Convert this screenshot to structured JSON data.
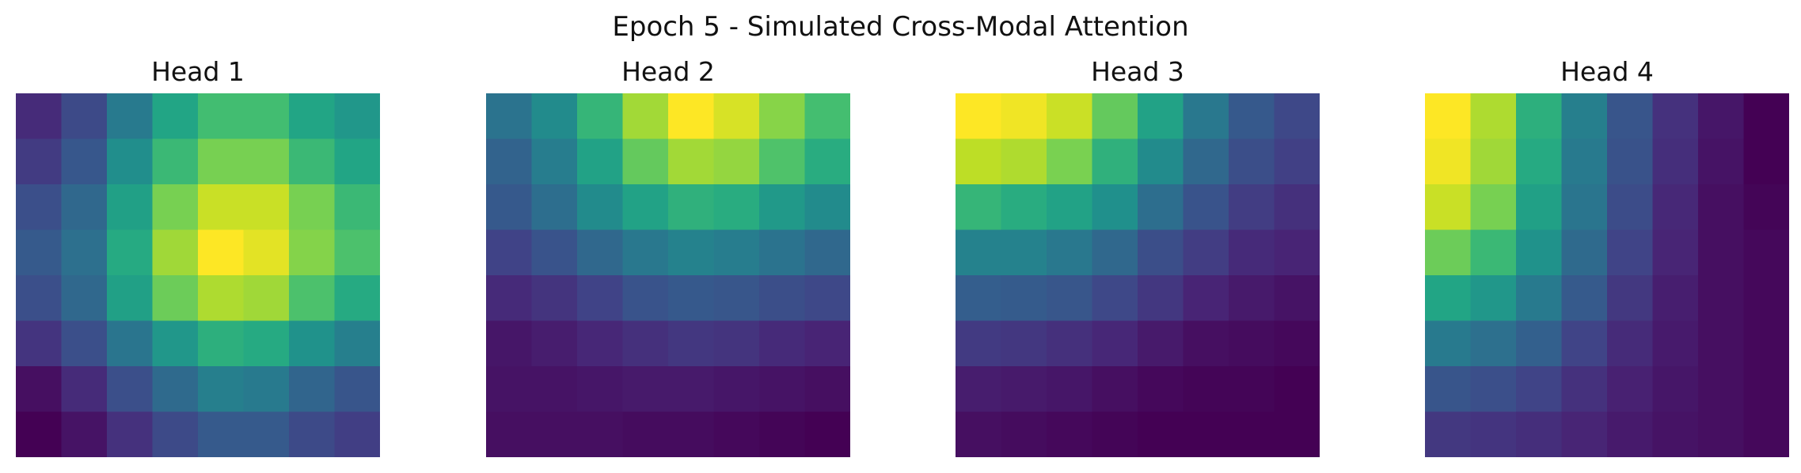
{
  "figure": {
    "title": "Epoch 5 - Simulated Cross-Modal Attention"
  },
  "colormap": "viridis",
  "chart_data": [
    {
      "type": "heatmap",
      "title": "Head 1",
      "rows": 8,
      "cols": 8,
      "axis": "off",
      "values": [
        [
          0.12,
          0.22,
          0.4,
          0.58,
          0.68,
          0.68,
          0.58,
          0.52
        ],
        [
          0.17,
          0.27,
          0.48,
          0.66,
          0.78,
          0.78,
          0.66,
          0.58
        ],
        [
          0.24,
          0.33,
          0.56,
          0.78,
          0.9,
          0.9,
          0.78,
          0.66
        ],
        [
          0.28,
          0.36,
          0.6,
          0.84,
          0.98,
          0.94,
          0.8,
          0.7
        ],
        [
          0.24,
          0.33,
          0.56,
          0.76,
          0.86,
          0.84,
          0.7,
          0.6
        ],
        [
          0.15,
          0.24,
          0.38,
          0.52,
          0.62,
          0.6,
          0.5,
          0.42
        ],
        [
          0.04,
          0.12,
          0.24,
          0.34,
          0.42,
          0.4,
          0.32,
          0.26
        ],
        [
          0.0,
          0.05,
          0.14,
          0.22,
          0.28,
          0.28,
          0.22,
          0.18
        ]
      ]
    },
    {
      "type": "heatmap",
      "title": "Head 2",
      "rows": 8,
      "cols": 8,
      "axis": "off",
      "values": [
        [
          0.38,
          0.48,
          0.66,
          0.86,
          1.0,
          0.94,
          0.82,
          0.7
        ],
        [
          0.32,
          0.42,
          0.58,
          0.76,
          0.86,
          0.84,
          0.72,
          0.62
        ],
        [
          0.28,
          0.36,
          0.48,
          0.58,
          0.64,
          0.62,
          0.54,
          0.48
        ],
        [
          0.2,
          0.26,
          0.34,
          0.4,
          0.44,
          0.42,
          0.38,
          0.34
        ],
        [
          0.12,
          0.15,
          0.2,
          0.26,
          0.28,
          0.27,
          0.24,
          0.22
        ],
        [
          0.06,
          0.08,
          0.11,
          0.14,
          0.16,
          0.15,
          0.12,
          0.1
        ],
        [
          0.05,
          0.05,
          0.06,
          0.07,
          0.07,
          0.06,
          0.05,
          0.04
        ],
        [
          0.04,
          0.04,
          0.04,
          0.03,
          0.03,
          0.02,
          0.01,
          0.0
        ]
      ]
    },
    {
      "type": "heatmap",
      "title": "Head 3",
      "rows": 8,
      "cols": 8,
      "axis": "off",
      "values": [
        [
          1.0,
          0.98,
          0.92,
          0.76,
          0.58,
          0.4,
          0.28,
          0.22
        ],
        [
          0.9,
          0.88,
          0.8,
          0.64,
          0.48,
          0.34,
          0.24,
          0.19
        ],
        [
          0.66,
          0.62,
          0.58,
          0.5,
          0.36,
          0.26,
          0.18,
          0.14
        ],
        [
          0.44,
          0.44,
          0.4,
          0.34,
          0.24,
          0.18,
          0.12,
          0.1
        ],
        [
          0.3,
          0.29,
          0.27,
          0.22,
          0.16,
          0.1,
          0.07,
          0.05
        ],
        [
          0.17,
          0.16,
          0.14,
          0.11,
          0.07,
          0.04,
          0.03,
          0.02
        ],
        [
          0.08,
          0.07,
          0.06,
          0.04,
          0.02,
          0.01,
          0.01,
          0.0
        ],
        [
          0.04,
          0.03,
          0.02,
          0.01,
          0.0,
          0.0,
          0.0,
          0.0
        ]
      ]
    },
    {
      "type": "heatmap",
      "title": "Head 4",
      "rows": 8,
      "cols": 8,
      "axis": "off",
      "values": [
        [
          1.0,
          0.88,
          0.64,
          0.44,
          0.28,
          0.16,
          0.08,
          0.02
        ],
        [
          0.98,
          0.86,
          0.62,
          0.42,
          0.27,
          0.15,
          0.07,
          0.02
        ],
        [
          0.92,
          0.8,
          0.58,
          0.4,
          0.25,
          0.13,
          0.06,
          0.03
        ],
        [
          0.78,
          0.68,
          0.52,
          0.36,
          0.22,
          0.12,
          0.06,
          0.04
        ],
        [
          0.6,
          0.54,
          0.42,
          0.3,
          0.18,
          0.1,
          0.06,
          0.04
        ],
        [
          0.42,
          0.38,
          0.32,
          0.22,
          0.14,
          0.09,
          0.06,
          0.04
        ],
        [
          0.28,
          0.26,
          0.22,
          0.16,
          0.11,
          0.08,
          0.06,
          0.04
        ],
        [
          0.18,
          0.17,
          0.15,
          0.12,
          0.09,
          0.07,
          0.06,
          0.04
        ]
      ]
    }
  ]
}
